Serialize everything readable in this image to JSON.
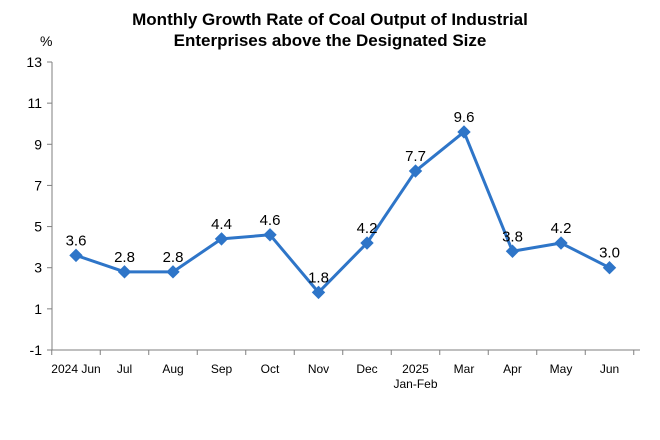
{
  "chart_data": {
    "type": "line",
    "title_lines": [
      "Monthly Growth Rate of Coal Output of Industrial",
      "Enterprises above the Designated Size"
    ],
    "ylabel": "%",
    "ylim": [
      -1,
      13
    ],
    "yticks": [
      "-1",
      "1",
      "3",
      "5",
      "7",
      "9",
      "11",
      "13"
    ],
    "categories": [
      {
        "label": "2024 Jun",
        "sub": ""
      },
      {
        "label": "Jul",
        "sub": ""
      },
      {
        "label": "Aug",
        "sub": ""
      },
      {
        "label": "Sep",
        "sub": ""
      },
      {
        "label": "Oct",
        "sub": ""
      },
      {
        "label": "Nov",
        "sub": ""
      },
      {
        "label": "Dec",
        "sub": ""
      },
      {
        "label": "2025",
        "sub": "Jan-Feb"
      },
      {
        "label": "Mar",
        "sub": ""
      },
      {
        "label": "Apr",
        "sub": ""
      },
      {
        "label": "May",
        "sub": ""
      },
      {
        "label": "Jun",
        "sub": ""
      }
    ],
    "values": [
      3.6,
      2.8,
      2.8,
      4.4,
      4.6,
      1.8,
      4.2,
      7.7,
      9.6,
      3.8,
      4.2,
      3.0
    ],
    "labels": [
      "3.6",
      "2.8",
      "2.8",
      "4.4",
      "4.6",
      "1.8",
      "4.2",
      "7.7",
      "9.6",
      "3.8",
      "4.2",
      "3.0"
    ],
    "line_color": "#2E75C8",
    "marker": "diamond",
    "grid": false
  }
}
